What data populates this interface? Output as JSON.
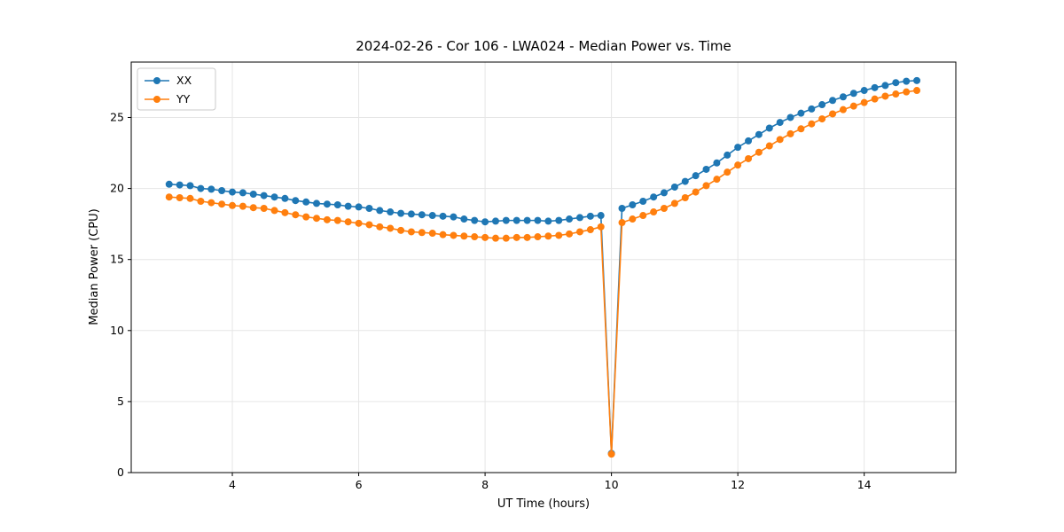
{
  "figure": {
    "background": "#ffffff"
  },
  "chart_data": {
    "type": "line",
    "title": "2024-02-26 - Cor 106 - LWA024 - Median Power vs. Time",
    "xlabel": "UT Time (hours)",
    "ylabel": "Median Power (CPU)",
    "xlim": [
      2.4,
      15.45
    ],
    "ylim": [
      0,
      28.9
    ],
    "xticks": [
      4,
      6,
      8,
      10,
      12,
      14
    ],
    "yticks": [
      0,
      5,
      10,
      15,
      20,
      25
    ],
    "grid": true,
    "legend_position": "upper-left",
    "marker": "circle",
    "x": [
      3.0,
      3.167,
      3.333,
      3.5,
      3.667,
      3.833,
      4.0,
      4.167,
      4.333,
      4.5,
      4.667,
      4.833,
      5.0,
      5.167,
      5.333,
      5.5,
      5.667,
      5.833,
      6.0,
      6.167,
      6.333,
      6.5,
      6.667,
      6.833,
      7.0,
      7.167,
      7.333,
      7.5,
      7.667,
      7.833,
      8.0,
      8.167,
      8.333,
      8.5,
      8.667,
      8.833,
      9.0,
      9.167,
      9.333,
      9.5,
      9.667,
      9.833,
      10.0,
      10.167,
      10.333,
      10.5,
      10.667,
      10.833,
      11.0,
      11.167,
      11.333,
      11.5,
      11.667,
      11.833,
      12.0,
      12.167,
      12.333,
      12.5,
      12.667,
      12.833,
      13.0,
      13.167,
      13.333,
      13.5,
      13.667,
      13.833,
      14.0,
      14.167,
      14.333,
      14.5,
      14.667,
      14.833
    ],
    "series": [
      {
        "name": "XX",
        "color": "#1f77b4",
        "values": [
          20.3,
          20.25,
          20.2,
          20.0,
          19.95,
          19.85,
          19.75,
          19.7,
          19.6,
          19.5,
          19.4,
          19.3,
          19.15,
          19.05,
          18.95,
          18.9,
          18.85,
          18.75,
          18.7,
          18.6,
          18.45,
          18.35,
          18.25,
          18.2,
          18.15,
          18.1,
          18.05,
          18.0,
          17.85,
          17.75,
          17.65,
          17.7,
          17.75,
          17.75,
          17.75,
          17.75,
          17.7,
          17.75,
          17.85,
          17.95,
          18.05,
          18.1,
          1.35,
          18.6,
          18.85,
          19.1,
          19.4,
          19.7,
          20.1,
          20.5,
          20.9,
          21.35,
          21.8,
          22.35,
          22.9,
          23.35,
          23.8,
          24.25,
          24.65,
          25.0,
          25.3,
          25.6,
          25.9,
          26.2,
          26.45,
          26.7,
          26.9,
          27.1,
          27.25,
          27.45,
          27.55,
          27.6
        ]
      },
      {
        "name": "YY",
        "color": "#ff7f0e",
        "values": [
          19.4,
          19.35,
          19.3,
          19.1,
          19.0,
          18.9,
          18.8,
          18.75,
          18.65,
          18.6,
          18.45,
          18.3,
          18.15,
          18.0,
          17.9,
          17.8,
          17.75,
          17.65,
          17.55,
          17.45,
          17.3,
          17.2,
          17.05,
          16.95,
          16.9,
          16.85,
          16.75,
          16.7,
          16.65,
          16.6,
          16.55,
          16.5,
          16.5,
          16.55,
          16.55,
          16.6,
          16.65,
          16.7,
          16.8,
          16.95,
          17.1,
          17.3,
          1.3,
          17.6,
          17.85,
          18.1,
          18.35,
          18.6,
          18.95,
          19.35,
          19.75,
          20.2,
          20.65,
          21.15,
          21.65,
          22.1,
          22.55,
          23.0,
          23.45,
          23.85,
          24.2,
          24.55,
          24.9,
          25.25,
          25.55,
          25.8,
          26.05,
          26.3,
          26.5,
          26.65,
          26.8,
          26.9
        ]
      }
    ]
  }
}
